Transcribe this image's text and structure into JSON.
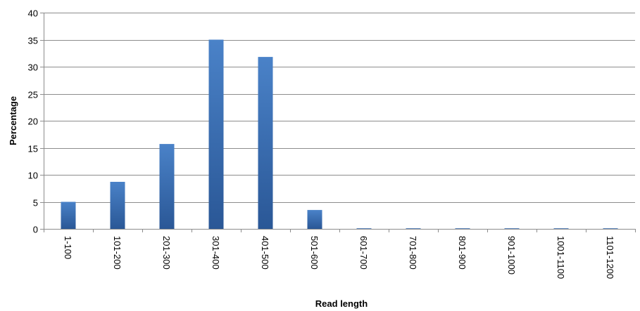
{
  "chart_data": {
    "type": "bar",
    "categories": [
      "1-100",
      "101-200",
      "201-300",
      "301-400",
      "401-500",
      "501-600",
      "601-700",
      "701-800",
      "801-900",
      "901-1000",
      "1001-1100",
      "1101-1200"
    ],
    "series": [
      {
        "values": [
          5.0,
          8.7,
          15.7,
          35.0,
          31.8,
          3.5,
          0.1,
          0.1,
          0.1,
          0.1,
          0.1,
          0.1
        ]
      }
    ],
    "xlabel": "Read length",
    "ylabel": "Percentage",
    "ylim": [
      0,
      40
    ],
    "yticks": [
      0,
      5,
      10,
      15,
      20,
      25,
      30,
      35,
      40
    ],
    "grid": true,
    "legend": "none",
    "bar_color_top": "#4a82c8",
    "bar_color_bottom": "#2a5796"
  }
}
